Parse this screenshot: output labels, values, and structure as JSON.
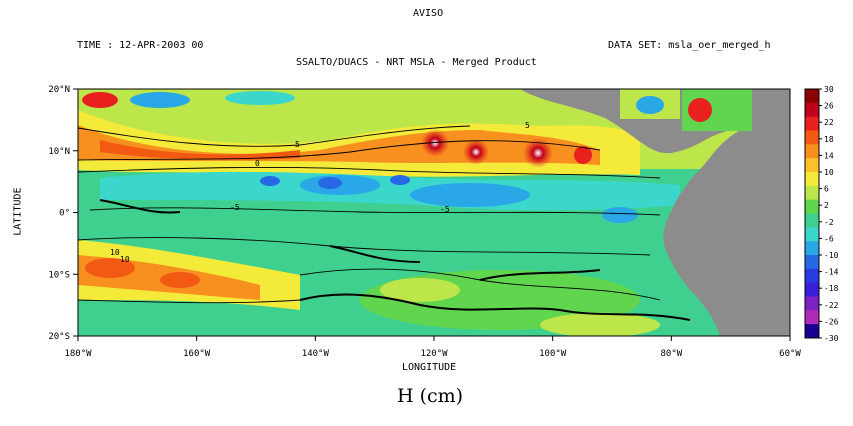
{
  "header": {
    "title": "AVISO",
    "time": "TIME : 12-APR-2003 00",
    "dataset": "DATA SET: msla_oer_merged_h",
    "subtitle": "SSALTO/DUACS - NRT MSLA - Merged Product"
  },
  "axes": {
    "xlabel": "LONGITUDE",
    "ylabel": "LATITUDE",
    "x_ticks": [
      "180°W",
      "160°W",
      "140°W",
      "120°W",
      "100°W",
      "80°W",
      "60°W"
    ],
    "y_ticks": [
      "20°N",
      "10°N",
      "0°",
      "10°S",
      "20°S"
    ],
    "xlim": [
      -180,
      -60
    ],
    "ylim": [
      -20,
      20
    ]
  },
  "colorbar": {
    "labels": [
      "30",
      "26",
      "22",
      "18",
      "14",
      "10",
      "6",
      "2",
      "-2",
      "-6",
      "-10",
      "-14",
      "-18",
      "-22",
      "-26",
      "-30"
    ],
    "colors": [
      "#8b0000",
      "#c0001a",
      "#e8201e",
      "#f25a14",
      "#f7901e",
      "#fbc02a",
      "#f4ea3a",
      "#bce64a",
      "#62d54f",
      "#3fd08f",
      "#3bd6cc",
      "#2aa7e6",
      "#2768e4",
      "#2a3ce0",
      "#3a1fd8",
      "#7a22c4",
      "#b02cb8",
      "#1a0090"
    ],
    "land_color": "#8c8c8c"
  },
  "caption": "H (cm)",
  "contour_labels": [
    "10",
    "5",
    "5",
    "0",
    "-5",
    "10",
    "-5"
  ]
}
